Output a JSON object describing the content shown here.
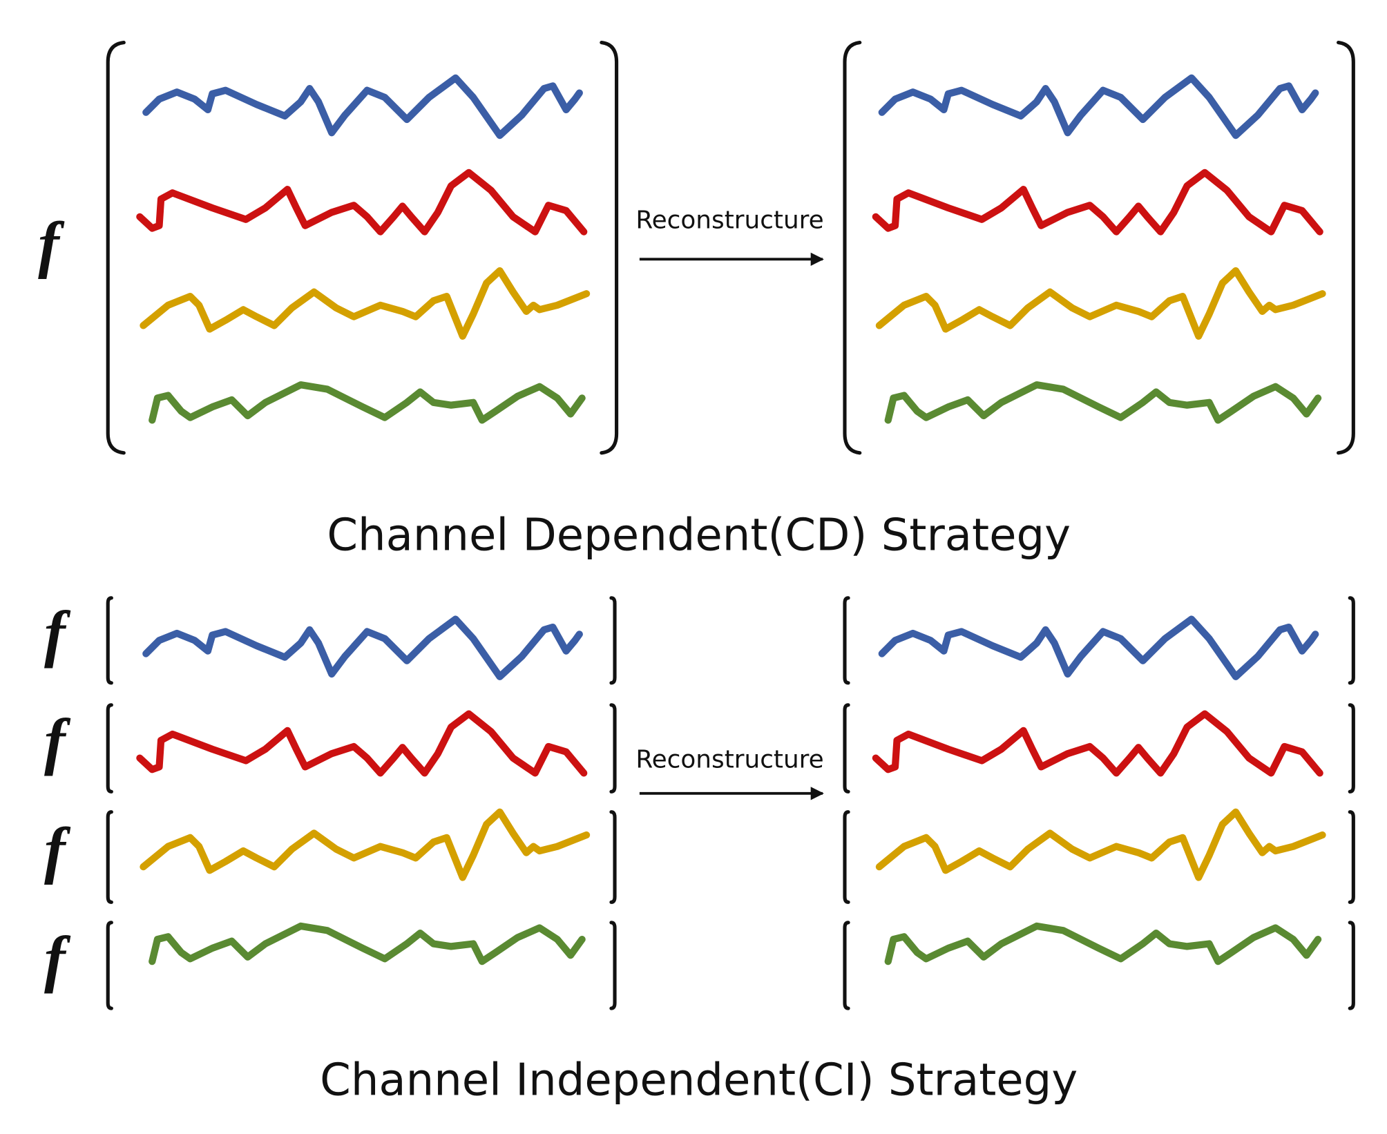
{
  "cd": {
    "function_label": "f",
    "arrow_label": "Reconstructure",
    "caption": "Channel Dependent(CD) Strategy"
  },
  "ci": {
    "function_labels": [
      "f",
      "f",
      "f",
      "f"
    ],
    "arrow_label": "Reconstructure",
    "caption": "Channel Independent(CI) Strategy"
  }
}
